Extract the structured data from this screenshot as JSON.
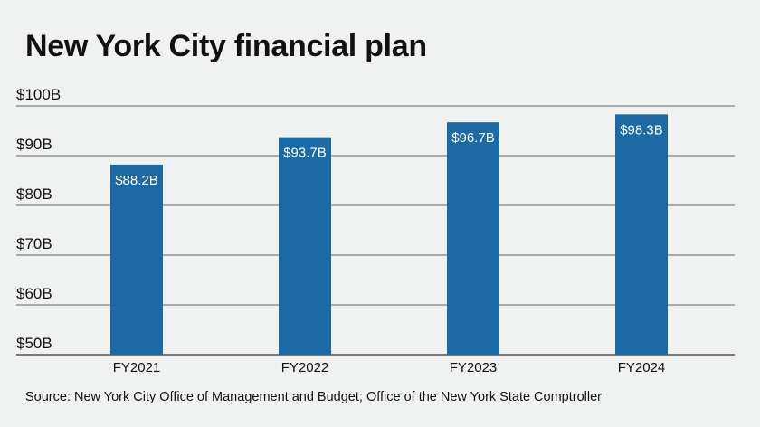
{
  "title": "New York City financial plan",
  "source": "Source: New York City Office of Management and Budget; Office of the New York State Comptroller",
  "chart_data": {
    "type": "bar",
    "categories": [
      "FY2021",
      "FY2022",
      "FY2023",
      "FY2024"
    ],
    "values": [
      88.2,
      93.7,
      96.7,
      98.3
    ],
    "value_labels": [
      "$88.2B",
      "$93.7B",
      "$96.7B",
      "$98.3B"
    ],
    "yticks": [
      50,
      60,
      70,
      80,
      90,
      100
    ],
    "ytick_labels": [
      "$50B",
      "$60B",
      "$70B",
      "$80B",
      "$90B",
      "$100B"
    ],
    "ylim": [
      50,
      100
    ],
    "grid": true,
    "bar_color": "#1b6aa5",
    "grid_color": "#333333"
  }
}
